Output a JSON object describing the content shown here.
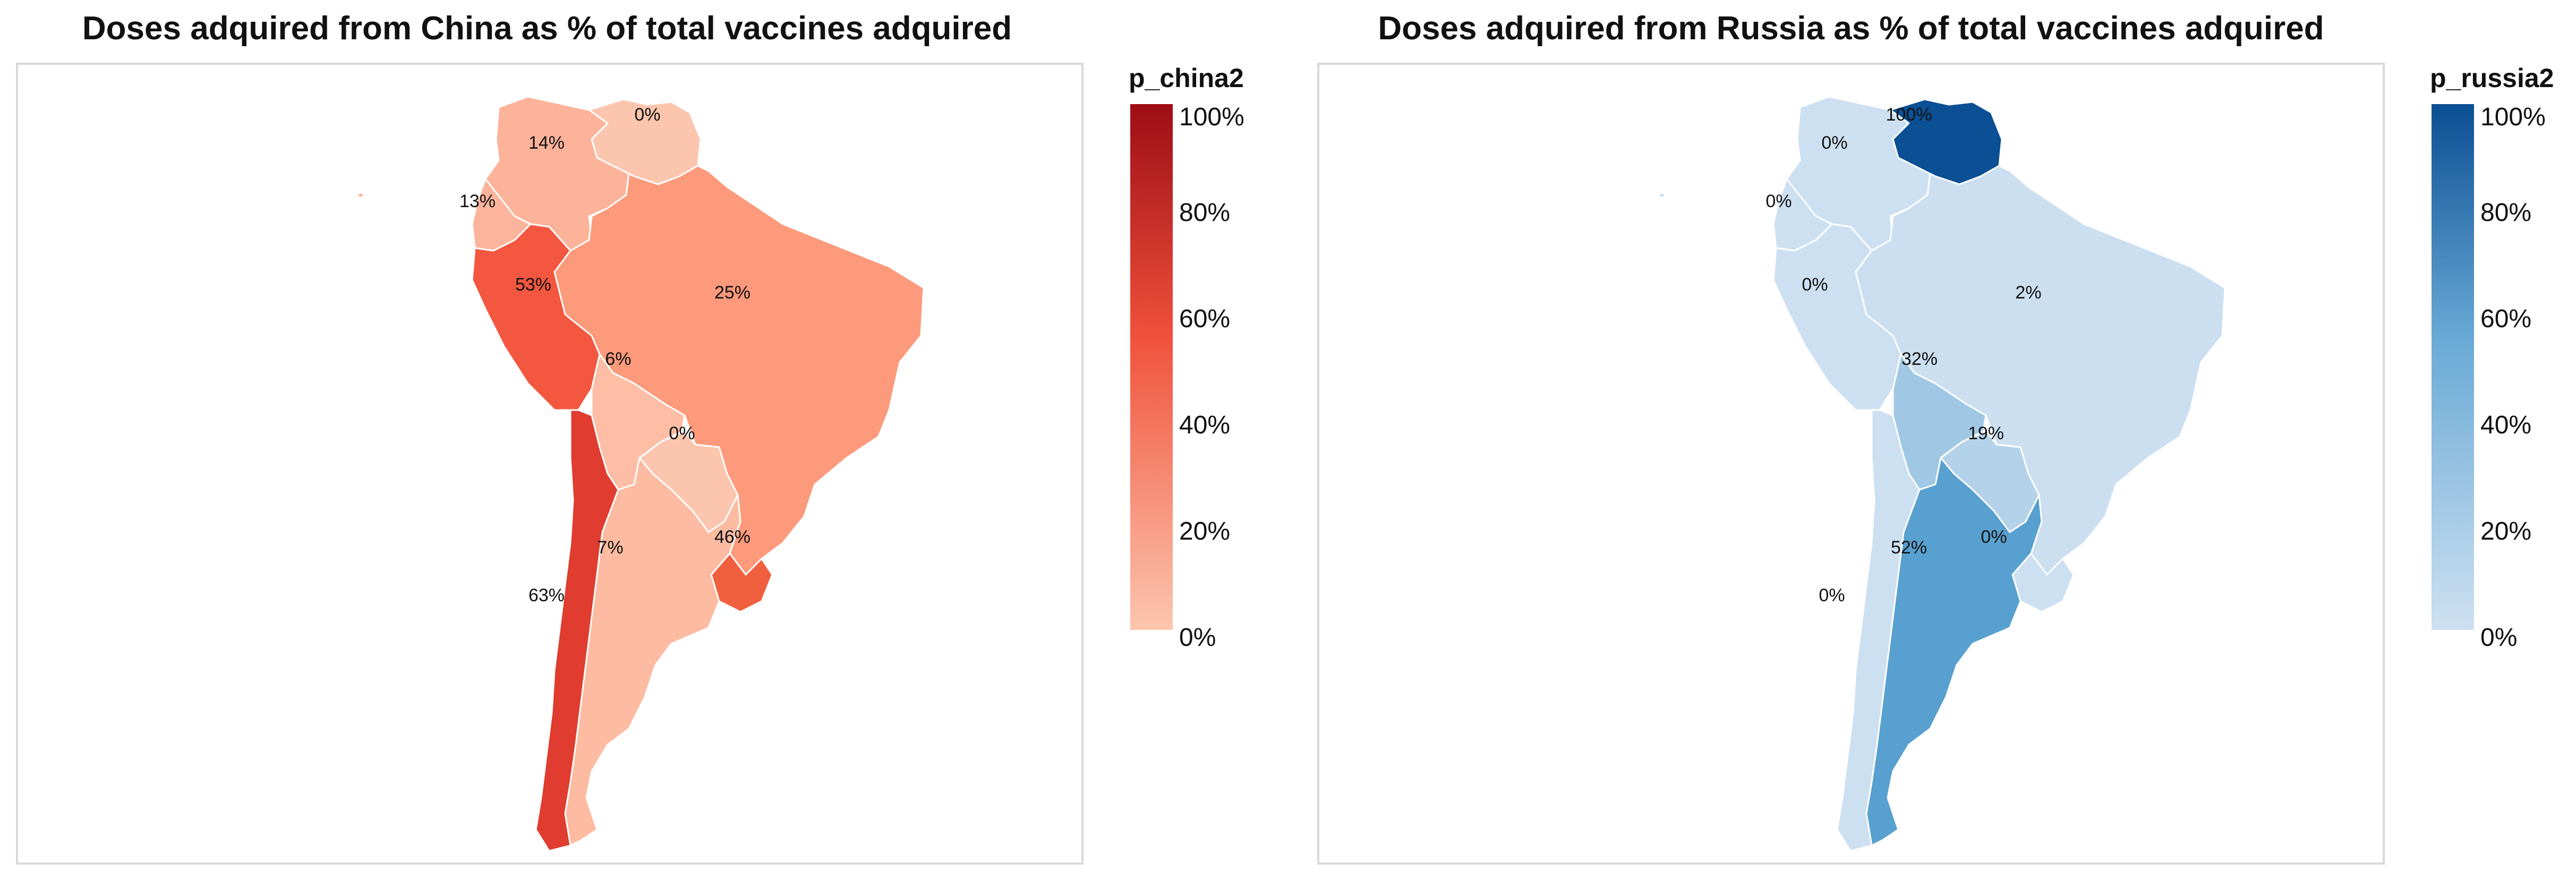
{
  "panels": [
    {
      "title": "Doses adquired from China as % of total vaccines adquired",
      "legend": {
        "title": "p_china2",
        "ticks": [
          "100%",
          "80%",
          "60%",
          "40%",
          "20%",
          "0%"
        ],
        "colors": {
          "low": "#fcc6ae",
          "mid": "#f0533d",
          "high": "#9e0d14"
        }
      },
      "regions": [
        {
          "id": "colombia",
          "value": 14,
          "label": "14%",
          "color": "#fcb39a"
        },
        {
          "id": "venezuela",
          "value": 0,
          "label": "0%",
          "color": "#fcc6ae"
        },
        {
          "id": "ecuador",
          "value": 13,
          "label": "13%",
          "color": "#fcb59c"
        },
        {
          "id": "peru",
          "value": 53,
          "label": "53%",
          "color": "#f35740"
        },
        {
          "id": "brazil",
          "value": 25,
          "label": "25%",
          "color": "#fc9a7b"
        },
        {
          "id": "bolivia",
          "value": 6,
          "label": "6%",
          "color": "#fdbea5"
        },
        {
          "id": "paraguay",
          "value": 0,
          "label": "0%",
          "color": "#fcc6ae"
        },
        {
          "id": "uruguay",
          "value": 46,
          "label": "46%",
          "color": "#f0603f"
        },
        {
          "id": "argentina",
          "value": 7,
          "label": "7%",
          "color": "#fdbba2"
        },
        {
          "id": "chile",
          "value": 63,
          "label": "63%",
          "color": "#e03c2f"
        }
      ]
    },
    {
      "title": "Doses adquired from Russia as % of total vaccines adquired",
      "legend": {
        "title": "p_russia2",
        "ticks": [
          "100%",
          "80%",
          "60%",
          "40%",
          "20%",
          "0%"
        ],
        "colors": {
          "low": "#cde0f1",
          "mid": "#6aaad6",
          "high": "#0b4f94"
        }
      },
      "regions": [
        {
          "id": "colombia",
          "value": 0,
          "label": "0%",
          "color": "#cde0f1"
        },
        {
          "id": "venezuela",
          "value": 100,
          "label": "100%",
          "color": "#0b4f94"
        },
        {
          "id": "ecuador",
          "value": 0,
          "label": "0%",
          "color": "#cde0f1"
        },
        {
          "id": "peru",
          "value": 0,
          "label": "0%",
          "color": "#cde0f1"
        },
        {
          "id": "brazil",
          "value": 2,
          "label": "2%",
          "color": "#cbdff0"
        },
        {
          "id": "bolivia",
          "value": 32,
          "label": "32%",
          "color": "#a0c8e4"
        },
        {
          "id": "paraguay",
          "value": 19,
          "label": "19%",
          "color": "#b4d3ea"
        },
        {
          "id": "uruguay",
          "value": 0,
          "label": "0%",
          "color": "#cde0f1"
        },
        {
          "id": "argentina",
          "value": 52,
          "label": "52%",
          "color": "#58a0cf"
        },
        {
          "id": "chile",
          "value": 0,
          "label": "0%",
          "color": "#cde0f1"
        }
      ]
    }
  ]
}
